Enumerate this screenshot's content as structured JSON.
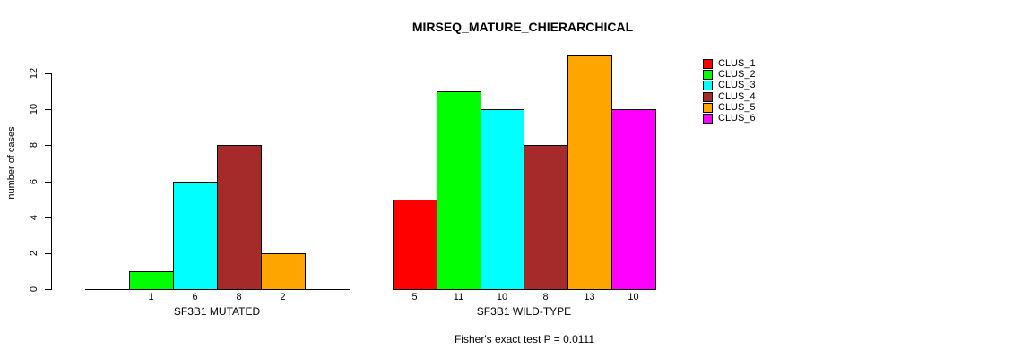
{
  "chart_data": {
    "type": "bar",
    "title": "MIRSEQ_MATURE_CHIERARCHICAL",
    "ylabel": "number of cases",
    "xlabel": "",
    "ylim": [
      0,
      13
    ],
    "yticks": [
      0,
      2,
      4,
      6,
      8,
      10,
      12
    ],
    "grid": false,
    "annotation": "Fisher's exact test P = 0.0111",
    "legend": {
      "position": "right",
      "entries": [
        {
          "label": "CLUS_1",
          "color": "#FF0000"
        },
        {
          "label": "CLUS_2",
          "color": "#00FF00"
        },
        {
          "label": "CLUS_3",
          "color": "#00FFFF"
        },
        {
          "label": "CLUS_4",
          "color": "#A52A2A"
        },
        {
          "label": "CLUS_5",
          "color": "#FFA500"
        },
        {
          "label": "CLUS_6",
          "color": "#FF00FF"
        }
      ]
    },
    "groups": [
      {
        "label": "SF3B1 MUTATED",
        "series": [
          "CLUS_1",
          "CLUS_2",
          "CLUS_3",
          "CLUS_4",
          "CLUS_5",
          "CLUS_6"
        ],
        "values": [
          0,
          1,
          6,
          8,
          2,
          0
        ],
        "bar_labels": [
          "",
          "1",
          "6",
          "8",
          "2",
          ""
        ]
      },
      {
        "label": "SF3B1 WILD-TYPE",
        "series": [
          "CLUS_1",
          "CLUS_2",
          "CLUS_3",
          "CLUS_4",
          "CLUS_5",
          "CLUS_6"
        ],
        "values": [
          5,
          11,
          10,
          8,
          13,
          10
        ],
        "bar_labels": [
          "5",
          "11",
          "10",
          "8",
          "13",
          "10"
        ]
      }
    ]
  }
}
